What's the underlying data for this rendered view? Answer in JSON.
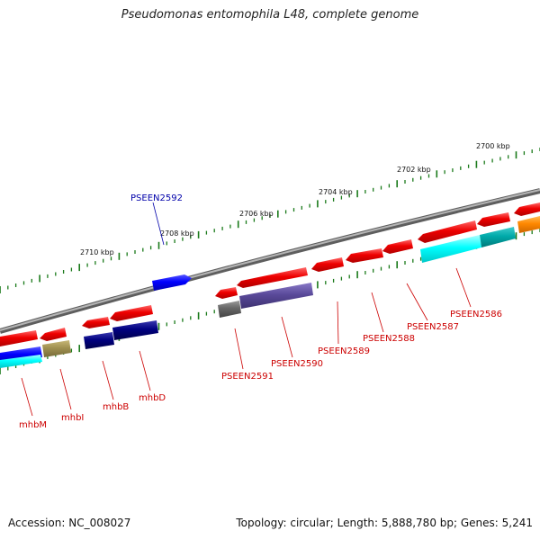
{
  "title": "Pseudomonas entomophila L48, complete genome",
  "footer": {
    "accession": "Accession: NC_008027",
    "topology": "Topology: circular; Length: 5,888,780 bp; Genes: 5,241"
  },
  "scale_labels": [
    "2700 kbp",
    "2702 kbp",
    "2704 kbp",
    "2706 kbp",
    "2708 kbp",
    "2710 kbp"
  ],
  "gene_labels": [
    "PSEEN2592",
    "PSEEN2591",
    "PSEEN2590",
    "PSEEN2589",
    "PSEEN2588",
    "PSEEN2587",
    "PSEEN2586",
    "mhbM",
    "mhbI",
    "mhbB",
    "mhbD"
  ],
  "colors": {
    "backbone": "#808080",
    "tick": "#1a7a1a",
    "gene_label_red": "#cc0000",
    "gene_label_blue": "#0000aa",
    "gene_red": "#ee0000",
    "gene_blue": "#0000ff",
    "gene_navy": "#000080",
    "gene_purple": "#5a4a9a",
    "gene_cyan": "#00ffff",
    "gene_teal": "#00aaaa",
    "gene_olive": "#a09050",
    "gene_gray": "#666666",
    "gene_orange": "#ff8800"
  }
}
